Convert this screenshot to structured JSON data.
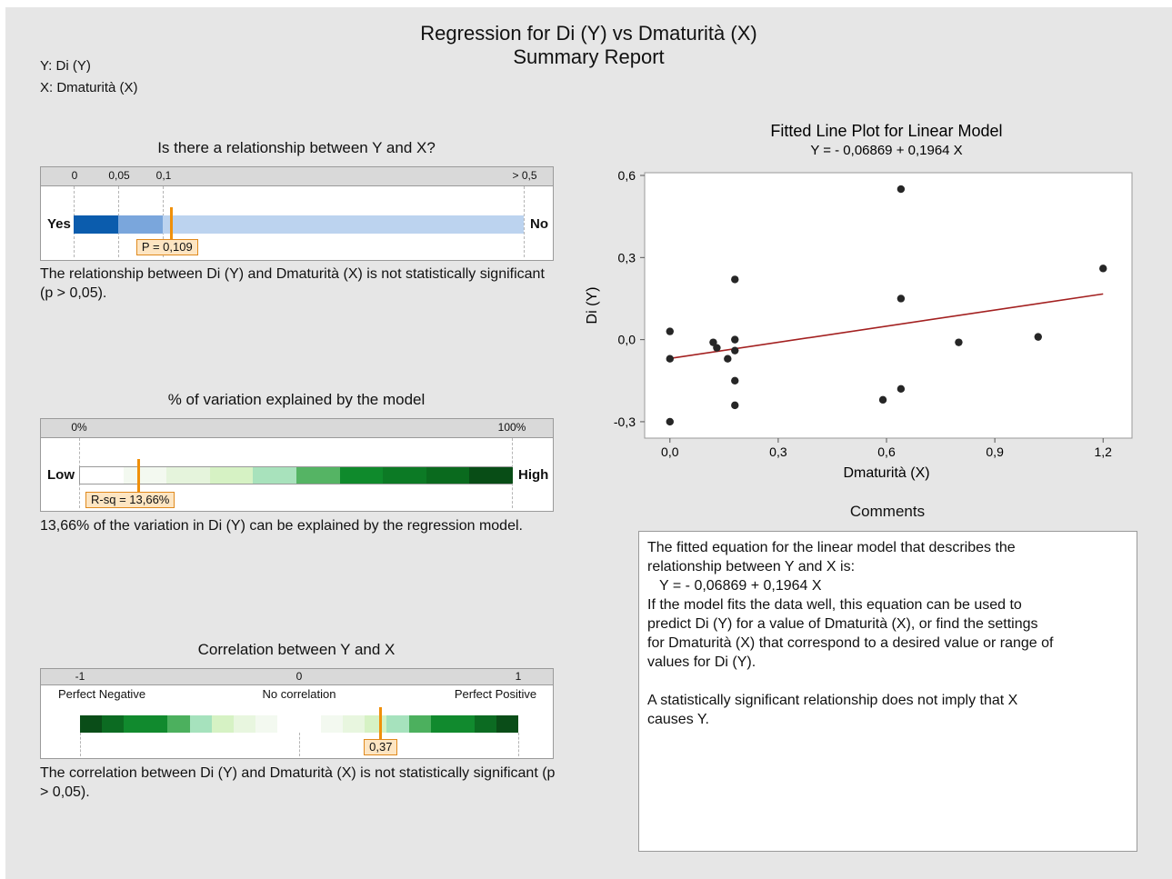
{
  "report": {
    "title": "Regression for Di (Y) vs Dmaturità (X)",
    "subtitle": "Summary Report",
    "y_var": "Y: Di (Y)",
    "x_var": "X: Dmaturità (X)"
  },
  "relationship": {
    "title": "Is there a relationship between Y and X?",
    "ticks": [
      "0",
      "0,05",
      "0,1",
      "> 0,5"
    ],
    "left_label": "Yes",
    "right_label": "No",
    "p_value": 0.109,
    "callout": "P = 0,109",
    "colors": [
      "#0b5cad",
      "#7aa6dc",
      "#bcd3ef"
    ],
    "text": "The relationship between Di (Y) and Dmaturità (X) is not statistically significant (p > 0,05)."
  },
  "variation": {
    "title": "% of variation explained by the model",
    "ticks": [
      "0%",
      "100%"
    ],
    "left_label": "Low",
    "right_label": "High",
    "r_sq": 0.1366,
    "callout": "R-sq = 13,66%",
    "colors": [
      "#ffffff",
      "#f3f9f0",
      "#e5f4dc",
      "#d6f2c4",
      "#a8e2bc",
      "#55b464",
      "#0f8a2c",
      "#0c7a25",
      "#0a6a1e",
      "#084d16"
    ],
    "text": "13,66% of the variation in Di (Y) can be explained by the regression model."
  },
  "correlation": {
    "title": "Correlation between Y and X",
    "ticks": [
      "-1",
      "0",
      "1"
    ],
    "labels": [
      "Perfect Negative",
      "No correlation",
      "Perfect Positive"
    ],
    "r": 0.37,
    "callout": "0,37",
    "colors": [
      "#0a4d18",
      "#0c6b22",
      "#118a2e",
      "#118a2e",
      "#4cb05e",
      "#a6e2bd",
      "#d6f2c4",
      "#e8f6df",
      "#f3f9f0",
      "#ffffff",
      "#ffffff",
      "#f3f9f0",
      "#e8f6df",
      "#d6f2c4",
      "#a6e2bd",
      "#4cb05e",
      "#118a2e",
      "#118a2e",
      "#0c6b22",
      "#0a4d18"
    ],
    "text": "The correlation between Di (Y) and Dmaturità (X) is not statistically significant (p > 0,05)."
  },
  "chart_data": {
    "type": "scatter",
    "title": "Fitted Line Plot for Linear Model",
    "subtitle": "Y = - 0,06869 + 0,1964 X",
    "xlabel": "Dmaturità (X)",
    "ylabel": "Di (Y)",
    "xlim": [
      -0.07,
      1.28
    ],
    "ylim": [
      -0.36,
      0.61
    ],
    "xticks": [
      0.0,
      0.3,
      0.6,
      0.9,
      1.2
    ],
    "xtick_labels": [
      "0,0",
      "0,3",
      "0,6",
      "0,9",
      "1,2"
    ],
    "yticks": [
      -0.3,
      0.0,
      0.3,
      0.6
    ],
    "ytick_labels": [
      "-0,3",
      "0,0",
      "0,3",
      "0,6"
    ],
    "grid": false,
    "point_color": "#262626",
    "line_color": "#a32020",
    "fit": {
      "intercept": -0.06869,
      "slope": 0.1964,
      "x_range": [
        0.0,
        1.2
      ]
    },
    "points": [
      {
        "x": 0.0,
        "y": 0.03
      },
      {
        "x": 0.0,
        "y": -0.07
      },
      {
        "x": 0.0,
        "y": -0.3
      },
      {
        "x": 0.12,
        "y": -0.01
      },
      {
        "x": 0.13,
        "y": -0.03
      },
      {
        "x": 0.16,
        "y": -0.07
      },
      {
        "x": 0.18,
        "y": 0.22
      },
      {
        "x": 0.18,
        "y": 0.0
      },
      {
        "x": 0.18,
        "y": -0.04
      },
      {
        "x": 0.18,
        "y": -0.15
      },
      {
        "x": 0.18,
        "y": -0.24
      },
      {
        "x": 0.59,
        "y": -0.22
      },
      {
        "x": 0.64,
        "y": 0.55
      },
      {
        "x": 0.64,
        "y": 0.15
      },
      {
        "x": 0.64,
        "y": -0.18
      },
      {
        "x": 0.8,
        "y": -0.01
      },
      {
        "x": 1.02,
        "y": 0.01
      },
      {
        "x": 1.2,
        "y": 0.26
      }
    ]
  },
  "comments": {
    "title": "Comments",
    "lines": [
      "The fitted equation for the linear model that describes the",
      "relationship between Y and X is:",
      "   Y = - 0,06869 + 0,1964 X",
      "If the model fits the data well, this equation can be used to",
      "predict Di (Y) for a value of Dmaturità (X), or find the settings",
      "for Dmaturità (X) that correspond to a desired value or range of",
      "values for Di (Y).",
      "",
      "A statistically significant relationship does not imply that X",
      "causes Y."
    ]
  }
}
